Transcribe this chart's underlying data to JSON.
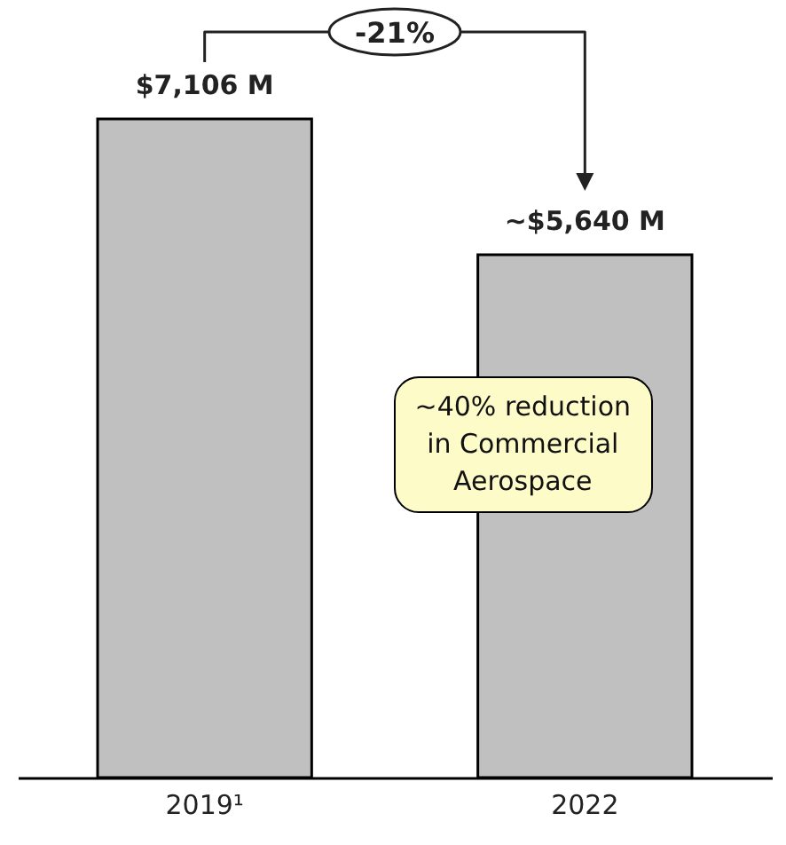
{
  "chart_data": {
    "type": "bar",
    "categories": [
      "2019¹",
      "2022"
    ],
    "values": [
      7106,
      5640
    ],
    "value_labels": [
      "$7,106 M",
      "~$5,640 M"
    ],
    "color": "#c0c0c0",
    "annotations": [
      "-21%",
      "~40% reduction in Commercial Aerospace"
    ]
  }
}
